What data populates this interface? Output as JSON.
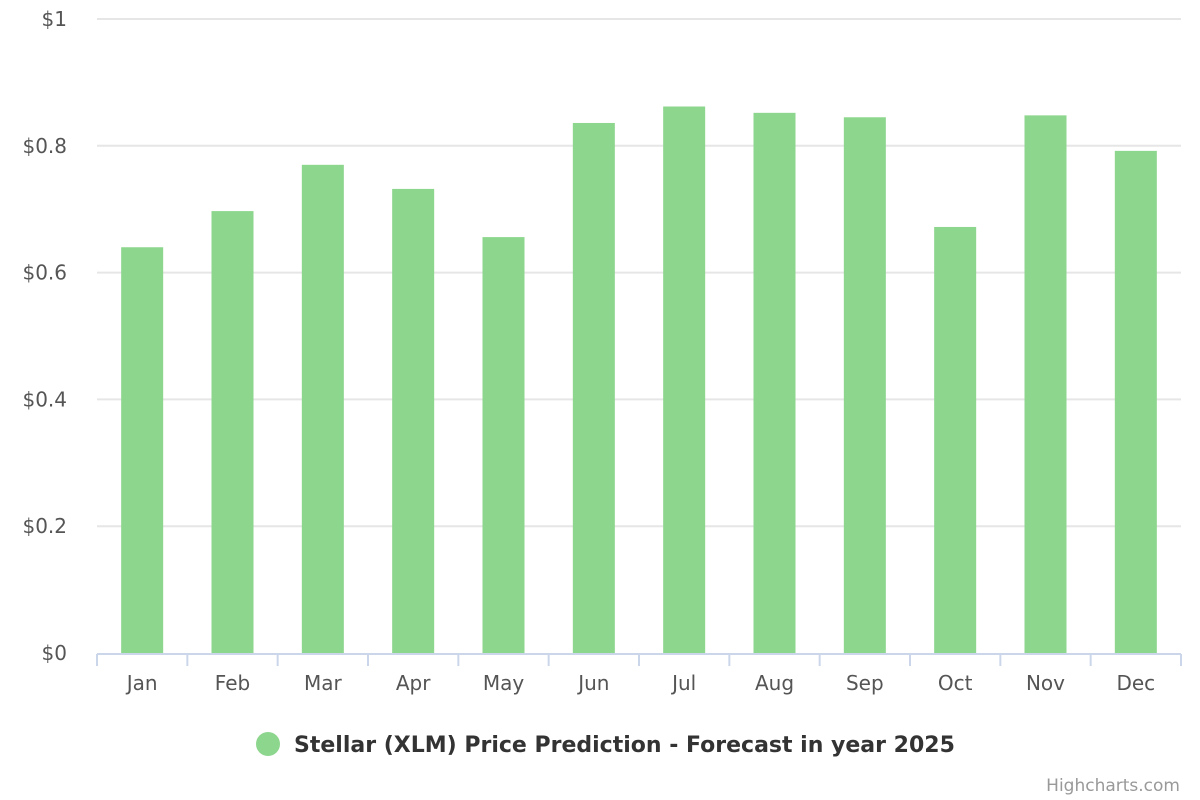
{
  "chart_data": {
    "type": "bar",
    "categories": [
      "Jan",
      "Feb",
      "Mar",
      "Apr",
      "May",
      "Jun",
      "Jul",
      "Aug",
      "Sep",
      "Oct",
      "Nov",
      "Dec"
    ],
    "series": [
      {
        "name": "Stellar (XLM) Price Prediction - Forecast in year 2025",
        "values": [
          0.64,
          0.697,
          0.77,
          0.732,
          0.656,
          0.836,
          0.862,
          0.852,
          0.845,
          0.672,
          0.848,
          0.792
        ],
        "color": "#8dd68d"
      }
    ],
    "ylim": [
      0,
      1
    ],
    "y_ticks": [
      {
        "value": 0,
        "label": "$0"
      },
      {
        "value": 0.2,
        "label": "$0.2"
      },
      {
        "value": 0.4,
        "label": "$0.4"
      },
      {
        "value": 0.6,
        "label": "$0.6"
      },
      {
        "value": 0.8,
        "label": "$0.8"
      },
      {
        "value": 1,
        "label": "$1"
      }
    ],
    "title": "",
    "xlabel": "",
    "ylabel": "",
    "grid": true,
    "legend_position": "bottom-center"
  },
  "credits": "Highcharts.com",
  "colors": {
    "grid": "#e6e6e6",
    "axis": "#ccd6eb",
    "bar": "#8dd68d"
  }
}
